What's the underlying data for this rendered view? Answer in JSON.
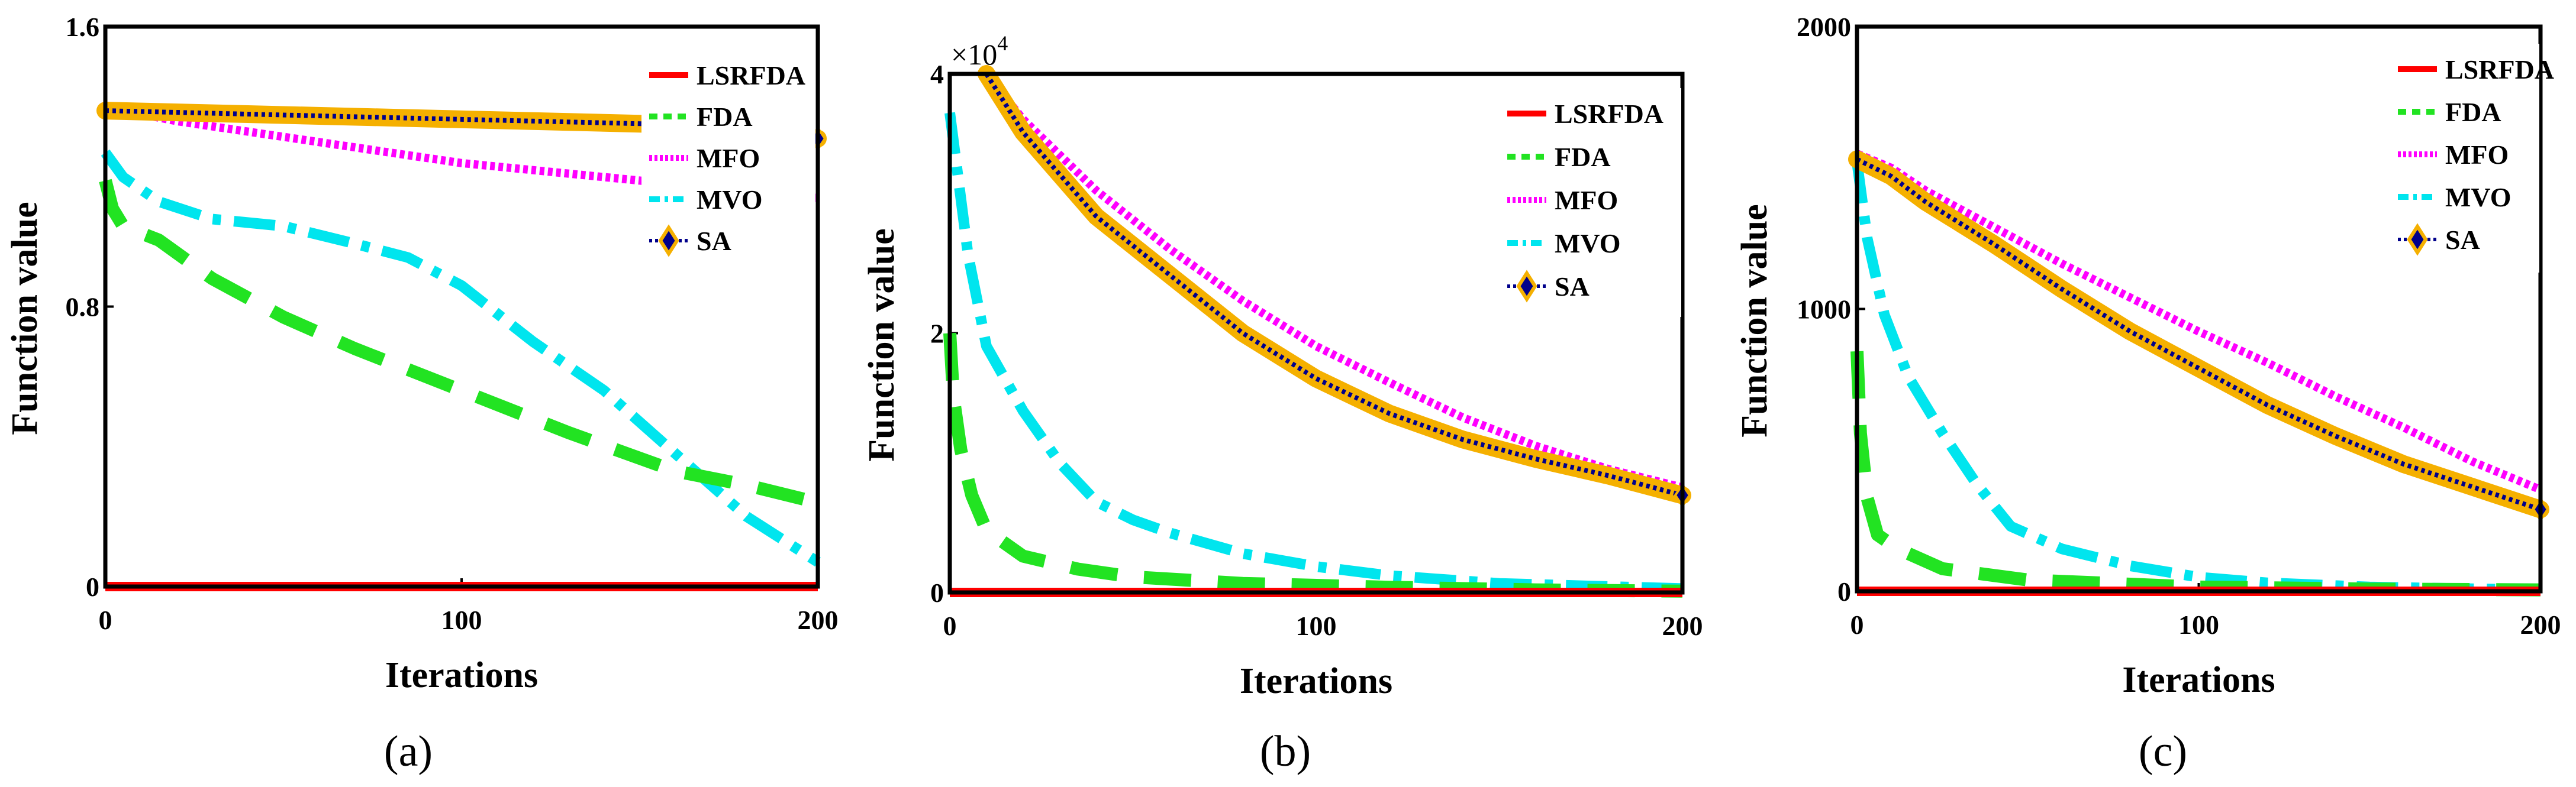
{
  "legend_labels": [
    "LSRFDA",
    "FDA",
    "MFO",
    "MVO",
    "SA"
  ],
  "colors": {
    "LSRFDA": "#ff0000",
    "FDA": "#22e322",
    "MFO": "#ff00ff",
    "MVO": "#00e5ee",
    "SA_marker": "#f5b000",
    "SA_line": "#00008b"
  },
  "chart_data": [
    {
      "type": "line",
      "panel_label": "(a)",
      "xlabel": "Iterations",
      "ylabel": "Function value",
      "xlim": [
        0,
        200
      ],
      "ylim": [
        0,
        1.6
      ],
      "xticks": [
        0,
        100,
        200
      ],
      "yticks": [
        0,
        0.8,
        1.6
      ],
      "ytick_labels": [
        "0",
        "0.8",
        "1.6"
      ],
      "multiplier": "",
      "legend_position": "top-right",
      "series": [
        {
          "name": "LSRFDA",
          "x": [
            0,
            200
          ],
          "values": [
            0,
            0
          ]
        },
        {
          "name": "FDA",
          "x": [
            0,
            2,
            5,
            15,
            30,
            50,
            70,
            100,
            130,
            160,
            180,
            200
          ],
          "values": [
            1.16,
            1.08,
            1.03,
            0.99,
            0.88,
            0.77,
            0.68,
            0.56,
            0.44,
            0.33,
            0.29,
            0.24
          ]
        },
        {
          "name": "MFO",
          "x": [
            0,
            20,
            40,
            60,
            80,
            100,
            130,
            160,
            200
          ],
          "values": [
            1.37,
            1.33,
            1.3,
            1.27,
            1.24,
            1.21,
            1.18,
            1.15,
            1.11
          ]
        },
        {
          "name": "MVO",
          "x": [
            0,
            5,
            15,
            30,
            50,
            70,
            85,
            100,
            120,
            140,
            160,
            180,
            200
          ],
          "values": [
            1.24,
            1.17,
            1.1,
            1.05,
            1.03,
            0.98,
            0.94,
            0.86,
            0.7,
            0.56,
            0.38,
            0.2,
            0.07
          ]
        },
        {
          "name": "SA",
          "x": [
            0,
            40,
            80,
            120,
            160,
            200
          ],
          "values": [
            1.36,
            1.35,
            1.34,
            1.33,
            1.32,
            1.28
          ]
        }
      ]
    },
    {
      "type": "line",
      "panel_label": "(b)",
      "xlabel": "Iterations",
      "ylabel": "Function value",
      "xlim": [
        0,
        200
      ],
      "ylim": [
        0,
        40000
      ],
      "xticks": [
        0,
        100,
        200
      ],
      "yticks": [
        0,
        20000,
        40000
      ],
      "ytick_labels": [
        "0",
        "2",
        "4"
      ],
      "multiplier": "×10",
      "multiplier_exponent": "4",
      "legend_position": "top-right",
      "series": [
        {
          "name": "LSRFDA",
          "x": [
            0,
            200
          ],
          "values": [
            0,
            0
          ]
        },
        {
          "name": "FDA",
          "x": [
            0,
            1,
            3,
            6,
            10,
            20,
            35,
            50,
            80,
            120,
            160,
            200
          ],
          "values": [
            20000,
            15000,
            11000,
            7500,
            4800,
            2800,
            1800,
            1200,
            700,
            400,
            200,
            100
          ]
        },
        {
          "name": "MFO",
          "x": [
            10,
            20,
            40,
            60,
            80,
            100,
            120,
            140,
            160,
            180,
            200
          ],
          "values": [
            40000,
            36500,
            31000,
            26500,
            22500,
            19000,
            16200,
            13500,
            11300,
            9500,
            8100
          ]
        },
        {
          "name": "MVO",
          "x": [
            0,
            5,
            10,
            20,
            30,
            40,
            50,
            60,
            80,
            100,
            120,
            150,
            200
          ],
          "values": [
            37000,
            26000,
            19000,
            14000,
            10000,
            7000,
            5600,
            4600,
            3000,
            2000,
            1300,
            700,
            300
          ]
        },
        {
          "name": "SA",
          "x": [
            10,
            20,
            40,
            60,
            80,
            100,
            120,
            140,
            160,
            180,
            200
          ],
          "values": [
            40000,
            35500,
            29000,
            24500,
            20000,
            16500,
            13800,
            11800,
            10300,
            9000,
            7500
          ]
        }
      ]
    },
    {
      "type": "line",
      "panel_label": "(c)",
      "xlabel": "Iterations",
      "ylabel": "Function value",
      "xlim": [
        0,
        200
      ],
      "ylim": [
        0,
        2000
      ],
      "xticks": [
        0,
        100,
        200
      ],
      "yticks": [
        0,
        1000,
        2000
      ],
      "ytick_labels": [
        "0",
        "1000",
        "2000"
      ],
      "multiplier": "",
      "legend_position": "top-right",
      "series": [
        {
          "name": "LSRFDA",
          "x": [
            0,
            200
          ],
          "values": [
            0,
            0
          ]
        },
        {
          "name": "FDA",
          "x": [
            0,
            1,
            3,
            6,
            12,
            25,
            50,
            100,
            150,
            200
          ],
          "values": [
            850,
            560,
            330,
            200,
            150,
            80,
            40,
            15,
            8,
            5
          ]
        },
        {
          "name": "MFO",
          "x": [
            0,
            10,
            20,
            40,
            60,
            80,
            100,
            120,
            140,
            160,
            180,
            200
          ],
          "values": [
            1550,
            1500,
            1420,
            1290,
            1160,
            1040,
            920,
            810,
            690,
            580,
            460,
            360
          ]
        },
        {
          "name": "MVO",
          "x": [
            0,
            3,
            8,
            15,
            25,
            35,
            45,
            60,
            80,
            100,
            120,
            150,
            200
          ],
          "values": [
            1520,
            1250,
            980,
            760,
            560,
            380,
            230,
            150,
            90,
            50,
            30,
            15,
            5
          ]
        },
        {
          "name": "SA",
          "x": [
            0,
            10,
            20,
            40,
            60,
            80,
            100,
            120,
            140,
            160,
            180,
            200
          ],
          "values": [
            1530,
            1470,
            1380,
            1230,
            1070,
            920,
            790,
            660,
            550,
            450,
            370,
            290
          ]
        }
      ]
    }
  ]
}
